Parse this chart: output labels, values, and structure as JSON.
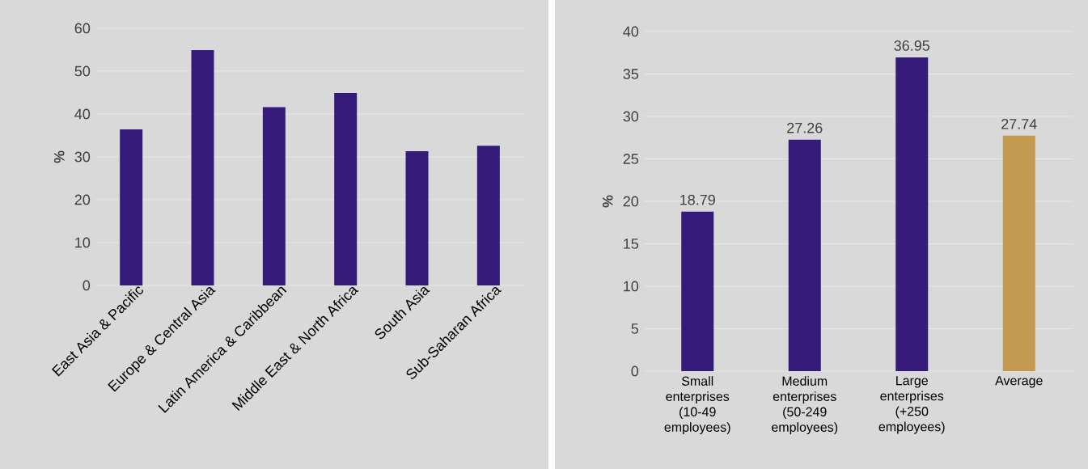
{
  "chart_data": [
    {
      "type": "bar",
      "categories": [
        "East Asia & Pacific",
        "Europe & Central Asia",
        "Latin America & Caribbean",
        "Middle East & North Africa",
        "South Asia",
        "Sub-Saharan Africa"
      ],
      "values": [
        36.4,
        54.9,
        41.6,
        44.9,
        31.3,
        32.6
      ],
      "color": "#361a7a",
      "ylabel": "%",
      "ylim": [
        0,
        60
      ],
      "yticks": [
        0,
        10,
        20,
        30,
        40,
        50,
        60
      ],
      "grid": "y"
    },
    {
      "type": "bar",
      "categories": [
        "Small enterprises (10-49 employees)",
        "Medium enterprises (50-249 employees)",
        "Large enterprises (+250 employees)",
        "Average"
      ],
      "values": [
        18.79,
        27.26,
        36.95,
        27.74
      ],
      "colors": [
        "#361a7a",
        "#361a7a",
        "#361a7a",
        "#c49a50"
      ],
      "data_labels": true,
      "ylabel": "%",
      "ylim": [
        0,
        40
      ],
      "yticks": [
        0,
        5,
        10,
        15,
        20,
        25,
        30,
        35,
        40
      ],
      "grid": "y"
    }
  ]
}
